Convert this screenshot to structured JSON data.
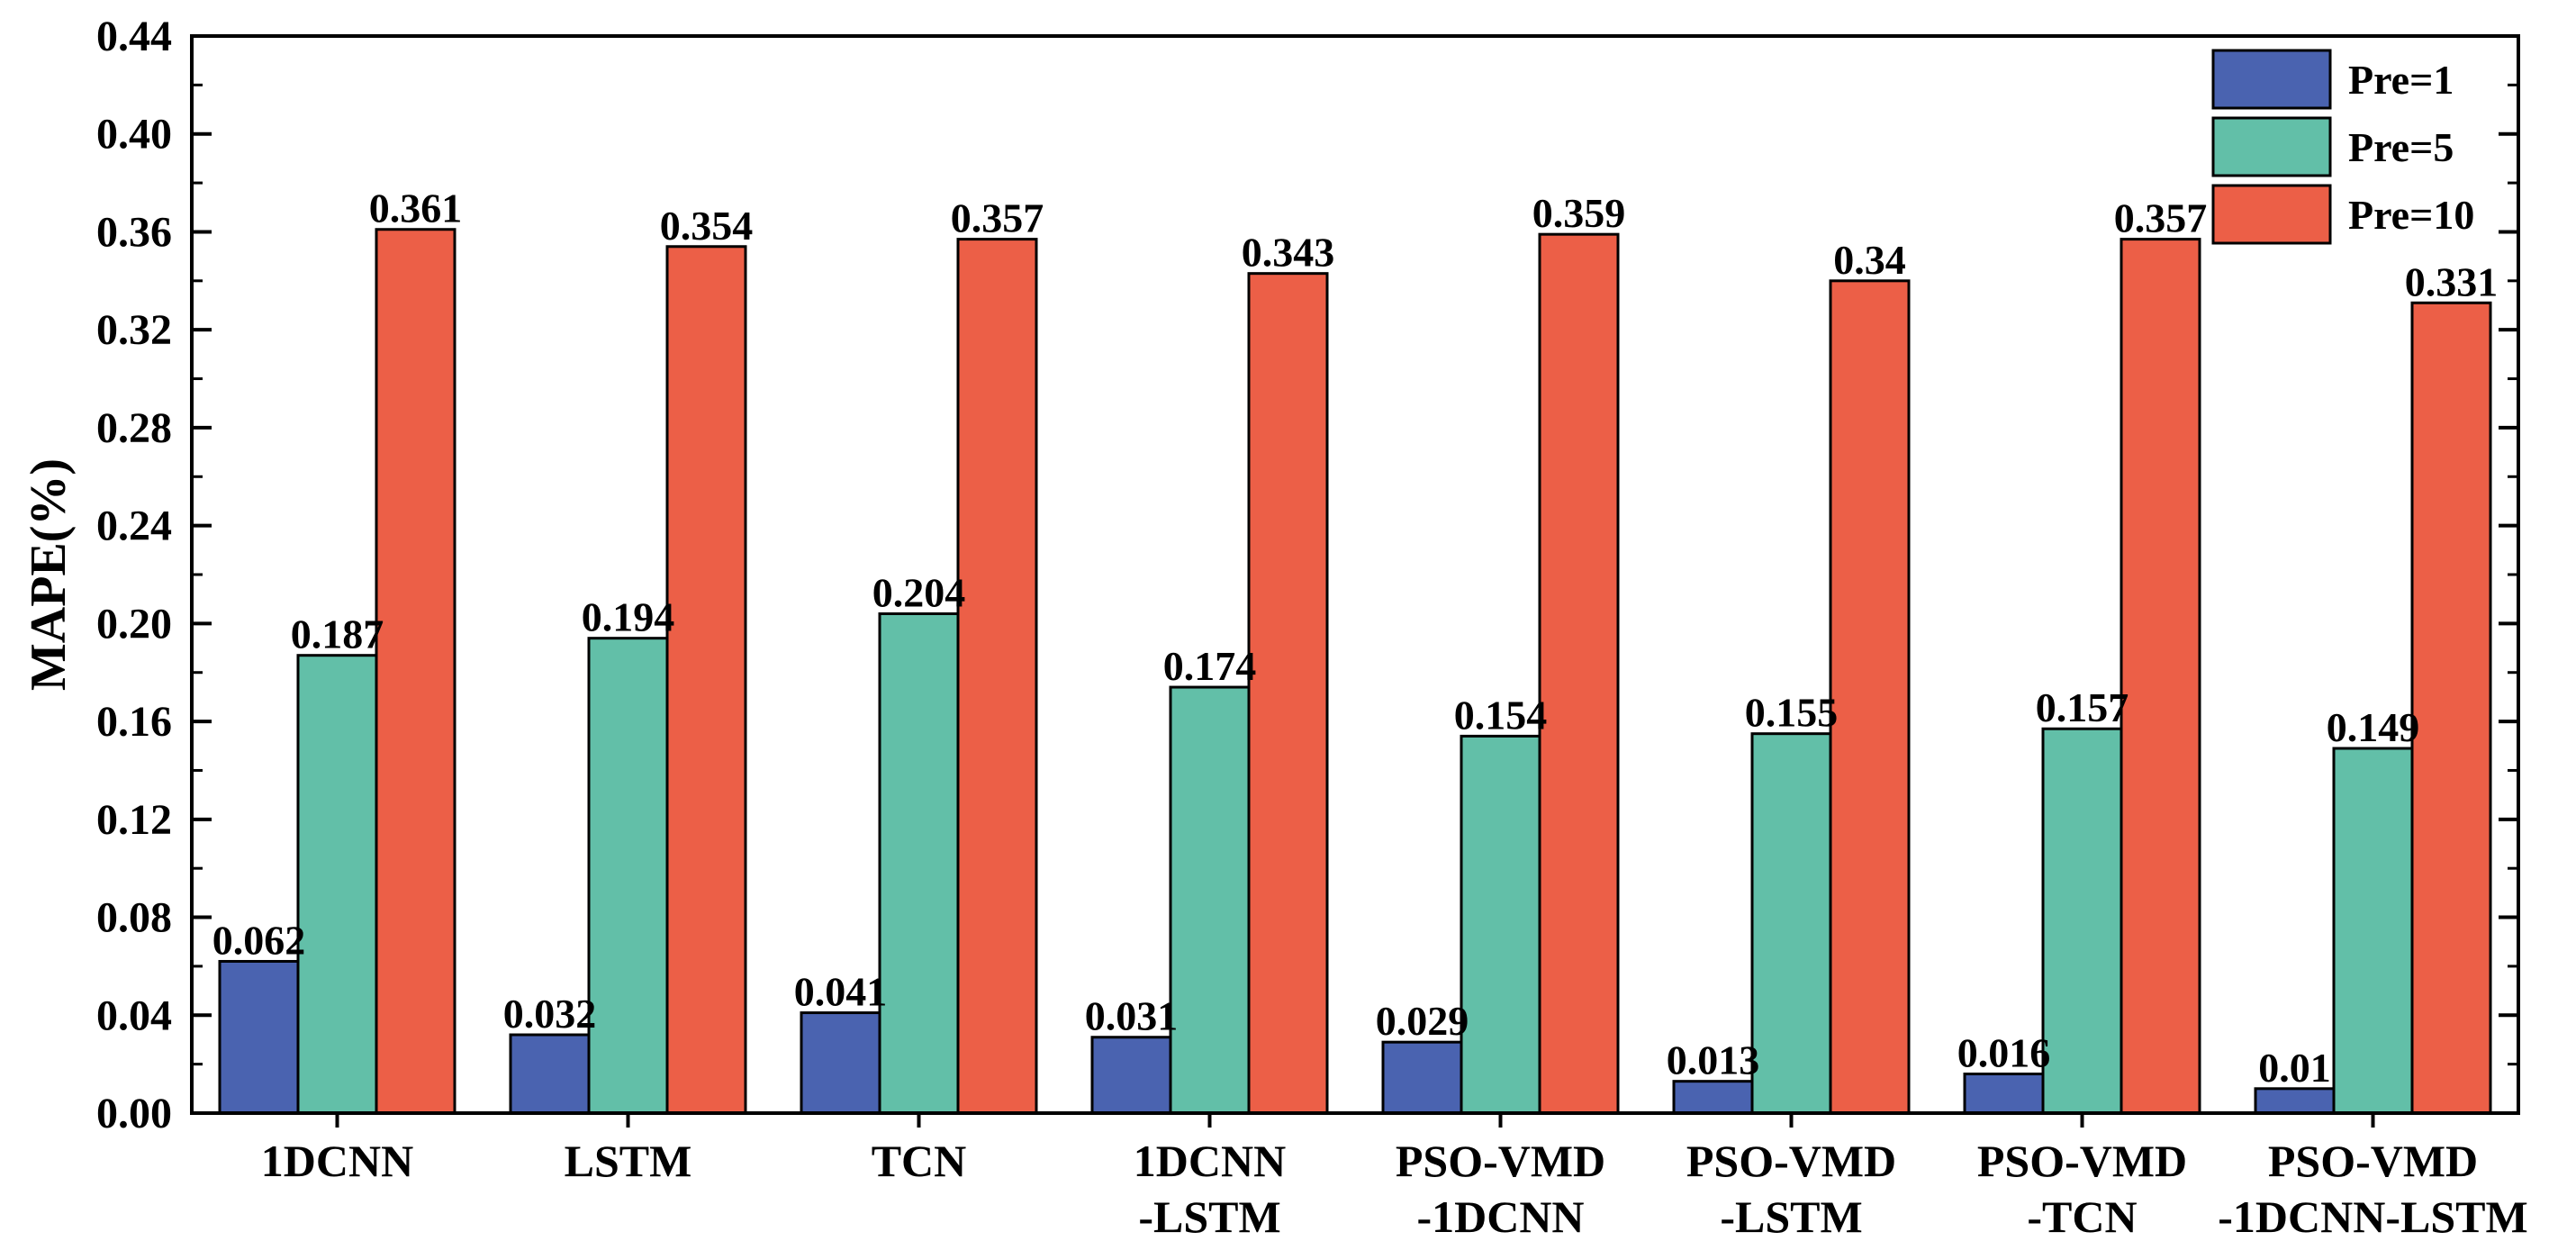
{
  "chart_data": {
    "type": "bar",
    "title": "",
    "xlabel": "",
    "ylabel": "MAPE(%)",
    "ylim": [
      0,
      0.44
    ],
    "yticks": [
      "0.00",
      "0.04",
      "0.08",
      "0.12",
      "0.16",
      "0.20",
      "0.24",
      "0.28",
      "0.32",
      "0.36",
      "0.40",
      "0.44"
    ],
    "categories": [
      {
        "line1": "1DCNN",
        "line2": ""
      },
      {
        "line1": "LSTM",
        "line2": ""
      },
      {
        "line1": "TCN",
        "line2": ""
      },
      {
        "line1": "1DCNN",
        "line2": "-LSTM"
      },
      {
        "line1": "PSO-VMD",
        "line2": "-1DCNN"
      },
      {
        "line1": "PSO-VMD",
        "line2": "-LSTM"
      },
      {
        "line1": "PSO-VMD",
        "line2": "-TCN"
      },
      {
        "line1": "PSO-VMD",
        "line2": "-1DCNN-LSTM"
      }
    ],
    "series": [
      {
        "name": "Pre=1",
        "color": "#4a63b0",
        "values": [
          0.062,
          0.032,
          0.041,
          0.031,
          0.029,
          0.013,
          0.016,
          0.01
        ],
        "labels": [
          "0.062",
          "0.032",
          "0.041",
          "0.031",
          "0.029",
          "0.013",
          "0.016",
          "0.01"
        ]
      },
      {
        "name": "Pre=5",
        "color": "#62bfa8",
        "values": [
          0.187,
          0.194,
          0.204,
          0.174,
          0.154,
          0.155,
          0.157,
          0.149
        ],
        "labels": [
          "0.187",
          "0.194",
          "0.204",
          "0.174",
          "0.154",
          "0.155",
          "0.157",
          "0.149"
        ]
      },
      {
        "name": "Pre=10",
        "color": "#ec5f47",
        "values": [
          0.361,
          0.354,
          0.357,
          0.343,
          0.359,
          0.34,
          0.357,
          0.331
        ],
        "labels": [
          "0.361",
          "0.354",
          "0.357",
          "0.343",
          "0.359",
          "0.34",
          "0.357",
          "0.331"
        ]
      }
    ],
    "legend_position": "top-right",
    "grid": false
  }
}
